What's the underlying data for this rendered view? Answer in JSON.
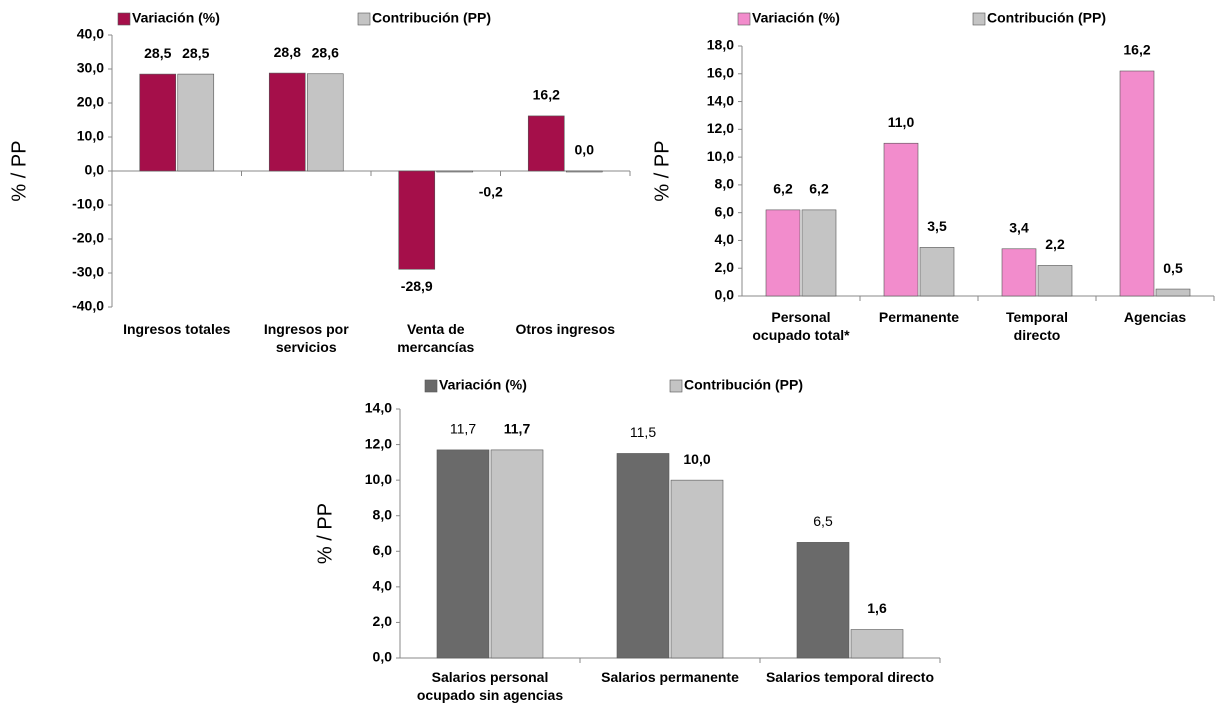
{
  "chart_data": [
    {
      "type": "bar",
      "y_label": "% / PP",
      "categories": [
        "Ingresos totales",
        "Ingresos por servicios",
        "Venta de mercancías",
        "Otros ingresos"
      ],
      "series": [
        {
          "name": "Variación (%)",
          "color": "#a50f4a",
          "values": [
            28.5,
            28.8,
            -28.9,
            16.2
          ],
          "value_labels": [
            "28,5",
            "28,8",
            "-28,9",
            "16,2"
          ]
        },
        {
          "name": "Contribución (PP)",
          "color": "#c4c4c4",
          "values": [
            28.5,
            28.6,
            -0.2,
            0.0
          ],
          "value_labels": [
            "28,5",
            "28,6",
            "-0,2",
            "0,0"
          ]
        }
      ],
      "ylim": [
        -40,
        40
      ],
      "yticks": [
        {
          "value": -40,
          "label": "-40,0"
        },
        {
          "value": -30,
          "label": "-30,0"
        },
        {
          "value": -20,
          "label": "-20,0"
        },
        {
          "value": -10,
          "label": "-10,0"
        },
        {
          "value": 0,
          "label": "0,0"
        },
        {
          "value": 10,
          "label": "10,0"
        },
        {
          "value": 20,
          "label": "20,0"
        },
        {
          "value": 30,
          "label": "30,0"
        },
        {
          "value": 40,
          "label": "40,0"
        }
      ]
    },
    {
      "type": "bar",
      "y_label": "% / PP",
      "categories": [
        "Personal ocupado total*",
        "Permanente",
        "Temporal directo",
        "Agencias"
      ],
      "series": [
        {
          "name": "Variación (%)",
          "color": "#f28ccc",
          "values": [
            6.2,
            11.0,
            3.4,
            16.2
          ],
          "value_labels": [
            "6,2",
            "11,0",
            "3,4",
            "16,2"
          ]
        },
        {
          "name": "Contribución (PP)",
          "color": "#c4c4c4",
          "values": [
            6.2,
            3.5,
            2.2,
            0.5
          ],
          "value_labels": [
            "6,2",
            "3,5",
            "2,2",
            "0,5"
          ]
        }
      ],
      "ylim": [
        0,
        18
      ],
      "yticks": [
        {
          "value": 0,
          "label": "0,0"
        },
        {
          "value": 2,
          "label": "2,0"
        },
        {
          "value": 4,
          "label": "4,0"
        },
        {
          "value": 6,
          "label": "6,0"
        },
        {
          "value": 8,
          "label": "8,0"
        },
        {
          "value": 10,
          "label": "10,0"
        },
        {
          "value": 12,
          "label": "12,0"
        },
        {
          "value": 14,
          "label": "14,0"
        },
        {
          "value": 16,
          "label": "16,0"
        },
        {
          "value": 18,
          "label": "18,0"
        }
      ]
    },
    {
      "type": "bar",
      "y_label": "% / PP",
      "categories": [
        "Salarios personal ocupado sin agencias",
        "Salarios permanente",
        "Salarios temporal directo"
      ],
      "series": [
        {
          "name": "Variación (%)",
          "color": "#6a6a6a",
          "values": [
            11.7,
            11.5,
            6.5
          ],
          "value_labels": [
            "11,7",
            "11,5",
            "6,5"
          ]
        },
        {
          "name": "Contribución (PP)",
          "color": "#c4c4c4",
          "values": [
            11.7,
            10.0,
            1.6
          ],
          "value_labels": [
            "11,7",
            "10,0",
            "1,6"
          ]
        }
      ],
      "ylim": [
        0,
        14
      ],
      "yticks": [
        {
          "value": 0,
          "label": "0,0"
        },
        {
          "value": 2,
          "label": "2,0"
        },
        {
          "value": 4,
          "label": "4,0"
        },
        {
          "value": 6,
          "label": "6,0"
        },
        {
          "value": 8,
          "label": "8,0"
        },
        {
          "value": 10,
          "label": "10,0"
        },
        {
          "value": 12,
          "label": "12,0"
        },
        {
          "value": 14,
          "label": "14,0"
        }
      ]
    }
  ]
}
